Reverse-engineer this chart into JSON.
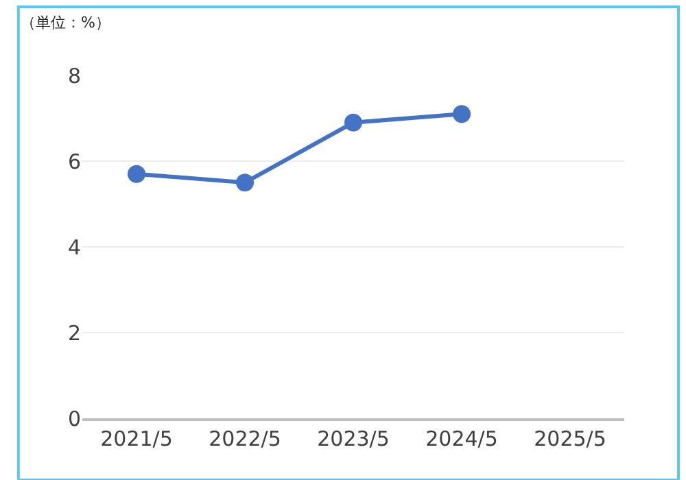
{
  "chart_data": {
    "type": "line",
    "ylabel": "（単位：%）",
    "categories": [
      "2021/5",
      "2022/5",
      "2023/5",
      "2024/5",
      "2025/5"
    ],
    "series": [
      {
        "color": "#4472c4",
        "values": [
          5.7,
          5.5,
          6.9,
          7.1,
          null
        ]
      }
    ],
    "ylim": [
      0,
      8
    ],
    "yticks": [
      0,
      2,
      4,
      6,
      8
    ],
    "grid": "y",
    "marker": "circle",
    "line_style": "solid",
    "legend": false
  }
}
